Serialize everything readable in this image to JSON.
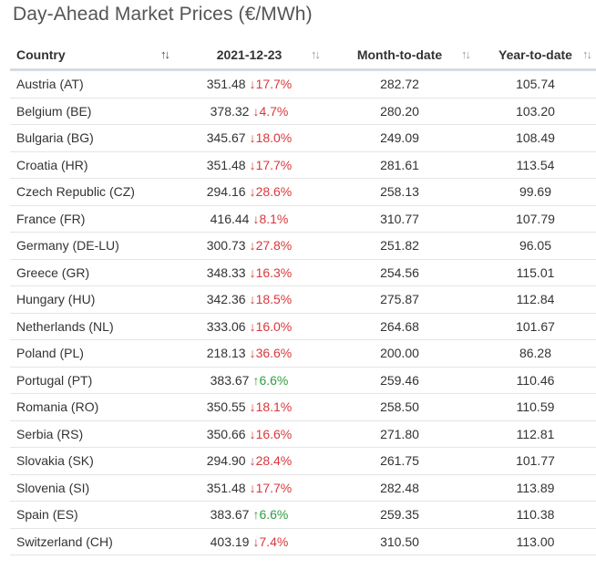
{
  "title": "Day-Ahead Market Prices (€/MWh)",
  "columns": {
    "country": "Country",
    "date": "2021-12-23",
    "mtd": "Month-to-date",
    "ytd": "Year-to-date"
  },
  "sort_icons": {
    "active": "sort-up-down-icon",
    "inactive": "sort-up-down-icon"
  },
  "colors": {
    "down": "#d9383b",
    "up": "#2e9e3f"
  },
  "rows": [
    {
      "country": "Austria (AT)",
      "price": "351.48",
      "dir": "down",
      "change": "17.7%",
      "mtd": "282.72",
      "ytd": "105.74"
    },
    {
      "country": "Belgium (BE)",
      "price": "378.32",
      "dir": "down",
      "change": "4.7%",
      "mtd": "280.20",
      "ytd": "103.20"
    },
    {
      "country": "Bulgaria (BG)",
      "price": "345.67",
      "dir": "down",
      "change": "18.0%",
      "mtd": "249.09",
      "ytd": "108.49"
    },
    {
      "country": "Croatia (HR)",
      "price": "351.48",
      "dir": "down",
      "change": "17.7%",
      "mtd": "281.61",
      "ytd": "113.54"
    },
    {
      "country": "Czech Republic (CZ)",
      "price": "294.16",
      "dir": "down",
      "change": "28.6%",
      "mtd": "258.13",
      "ytd": "99.69"
    },
    {
      "country": "France (FR)",
      "price": "416.44",
      "dir": "down",
      "change": "8.1%",
      "mtd": "310.77",
      "ytd": "107.79"
    },
    {
      "country": "Germany (DE-LU)",
      "price": "300.73",
      "dir": "down",
      "change": "27.8%",
      "mtd": "251.82",
      "ytd": "96.05"
    },
    {
      "country": "Greece (GR)",
      "price": "348.33",
      "dir": "down",
      "change": "16.3%",
      "mtd": "254.56",
      "ytd": "115.01"
    },
    {
      "country": "Hungary (HU)",
      "price": "342.36",
      "dir": "down",
      "change": "18.5%",
      "mtd": "275.87",
      "ytd": "112.84"
    },
    {
      "country": "Netherlands (NL)",
      "price": "333.06",
      "dir": "down",
      "change": "16.0%",
      "mtd": "264.68",
      "ytd": "101.67"
    },
    {
      "country": "Poland (PL)",
      "price": "218.13",
      "dir": "down",
      "change": "36.6%",
      "mtd": "200.00",
      "ytd": "86.28"
    },
    {
      "country": "Portugal (PT)",
      "price": "383.67",
      "dir": "up",
      "change": "6.6%",
      "mtd": "259.46",
      "ytd": "110.46"
    },
    {
      "country": "Romania (RO)",
      "price": "350.55",
      "dir": "down",
      "change": "18.1%",
      "mtd": "258.50",
      "ytd": "110.59"
    },
    {
      "country": "Serbia (RS)",
      "price": "350.66",
      "dir": "down",
      "change": "16.6%",
      "mtd": "271.80",
      "ytd": "112.81"
    },
    {
      "country": "Slovakia (SK)",
      "price": "294.90",
      "dir": "down",
      "change": "28.4%",
      "mtd": "261.75",
      "ytd": "101.77"
    },
    {
      "country": "Slovenia (SI)",
      "price": "351.48",
      "dir": "down",
      "change": "17.7%",
      "mtd": "282.48",
      "ytd": "113.89"
    },
    {
      "country": "Spain (ES)",
      "price": "383.67",
      "dir": "up",
      "change": "6.6%",
      "mtd": "259.35",
      "ytd": "110.38"
    },
    {
      "country": "Switzerland (CH)",
      "price": "403.19",
      "dir": "down",
      "change": "7.4%",
      "mtd": "310.50",
      "ytd": "113.00"
    }
  ]
}
